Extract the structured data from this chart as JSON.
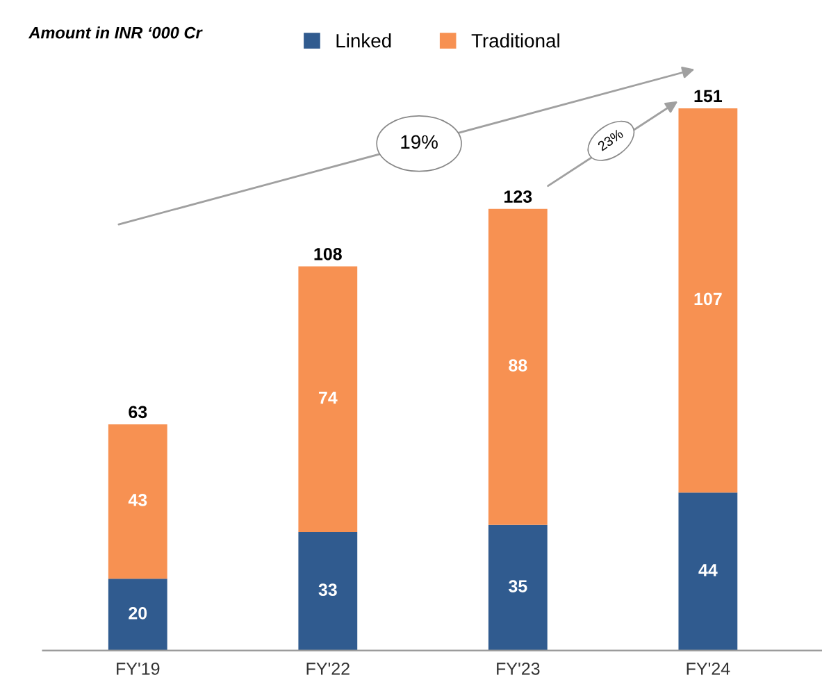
{
  "chart_data": {
    "type": "bar",
    "stacked": true,
    "categories": [
      "FY'19",
      "FY'22",
      "FY'23",
      "FY'24"
    ],
    "series": [
      {
        "name": "Linked",
        "color": "#305b8f",
        "values": [
          20,
          33,
          35,
          44
        ]
      },
      {
        "name": "Traditional",
        "color": "#f79152",
        "values": [
          43,
          74,
          88,
          107
        ]
      }
    ],
    "totals": [
      "63",
      "108",
      "123",
      "151"
    ],
    "data_labels": true,
    "legend": "top",
    "grid": false,
    "tick_labels": "x",
    "annotations": [
      "Amount in INR ‘000 Cr",
      "19%",
      "23%"
    ]
  }
}
